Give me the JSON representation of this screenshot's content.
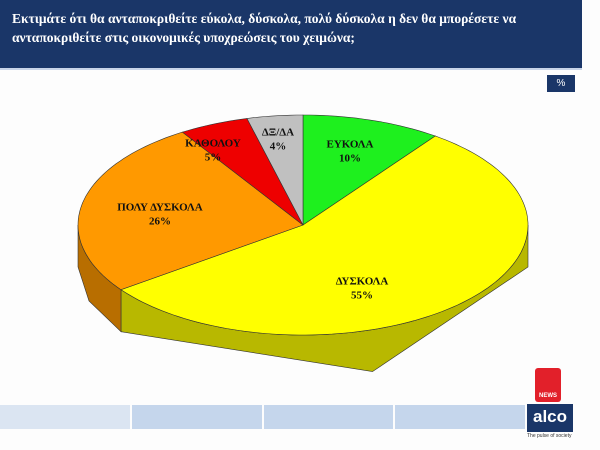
{
  "chart_data": {
    "type": "pie",
    "title": "Εκτιμάτε ότι θα ανταποκριθείτε εύκολα, δύσκολα, πολύ δύσκολα  η  δεν θα μπορέσετε να ανταποκριθείτε στις οικονομικές υποχρεώσεις  του  χειμώνα;",
    "unit_label": "%",
    "categories": [
      "ΕΥΚΟΛΑ",
      "ΔΥΣΚΟΛΑ",
      "ΠΟΛΥ ΔΥΣΚΟΛΑ",
      "ΚΑΘΟΛΟΥ",
      "ΔΞ/ΔΑ"
    ],
    "values": [
      10,
      55,
      26,
      5,
      4
    ],
    "value_labels": [
      "10%",
      "55%",
      "26%",
      "5%",
      "4%"
    ],
    "colors": [
      "#1ef01e",
      "#ffff00",
      "#ff9900",
      "#ee0000",
      "#c0c0c0"
    ]
  },
  "branding": {
    "news": "NEWS",
    "logo": "alco",
    "tagline": "The pulse of society"
  }
}
